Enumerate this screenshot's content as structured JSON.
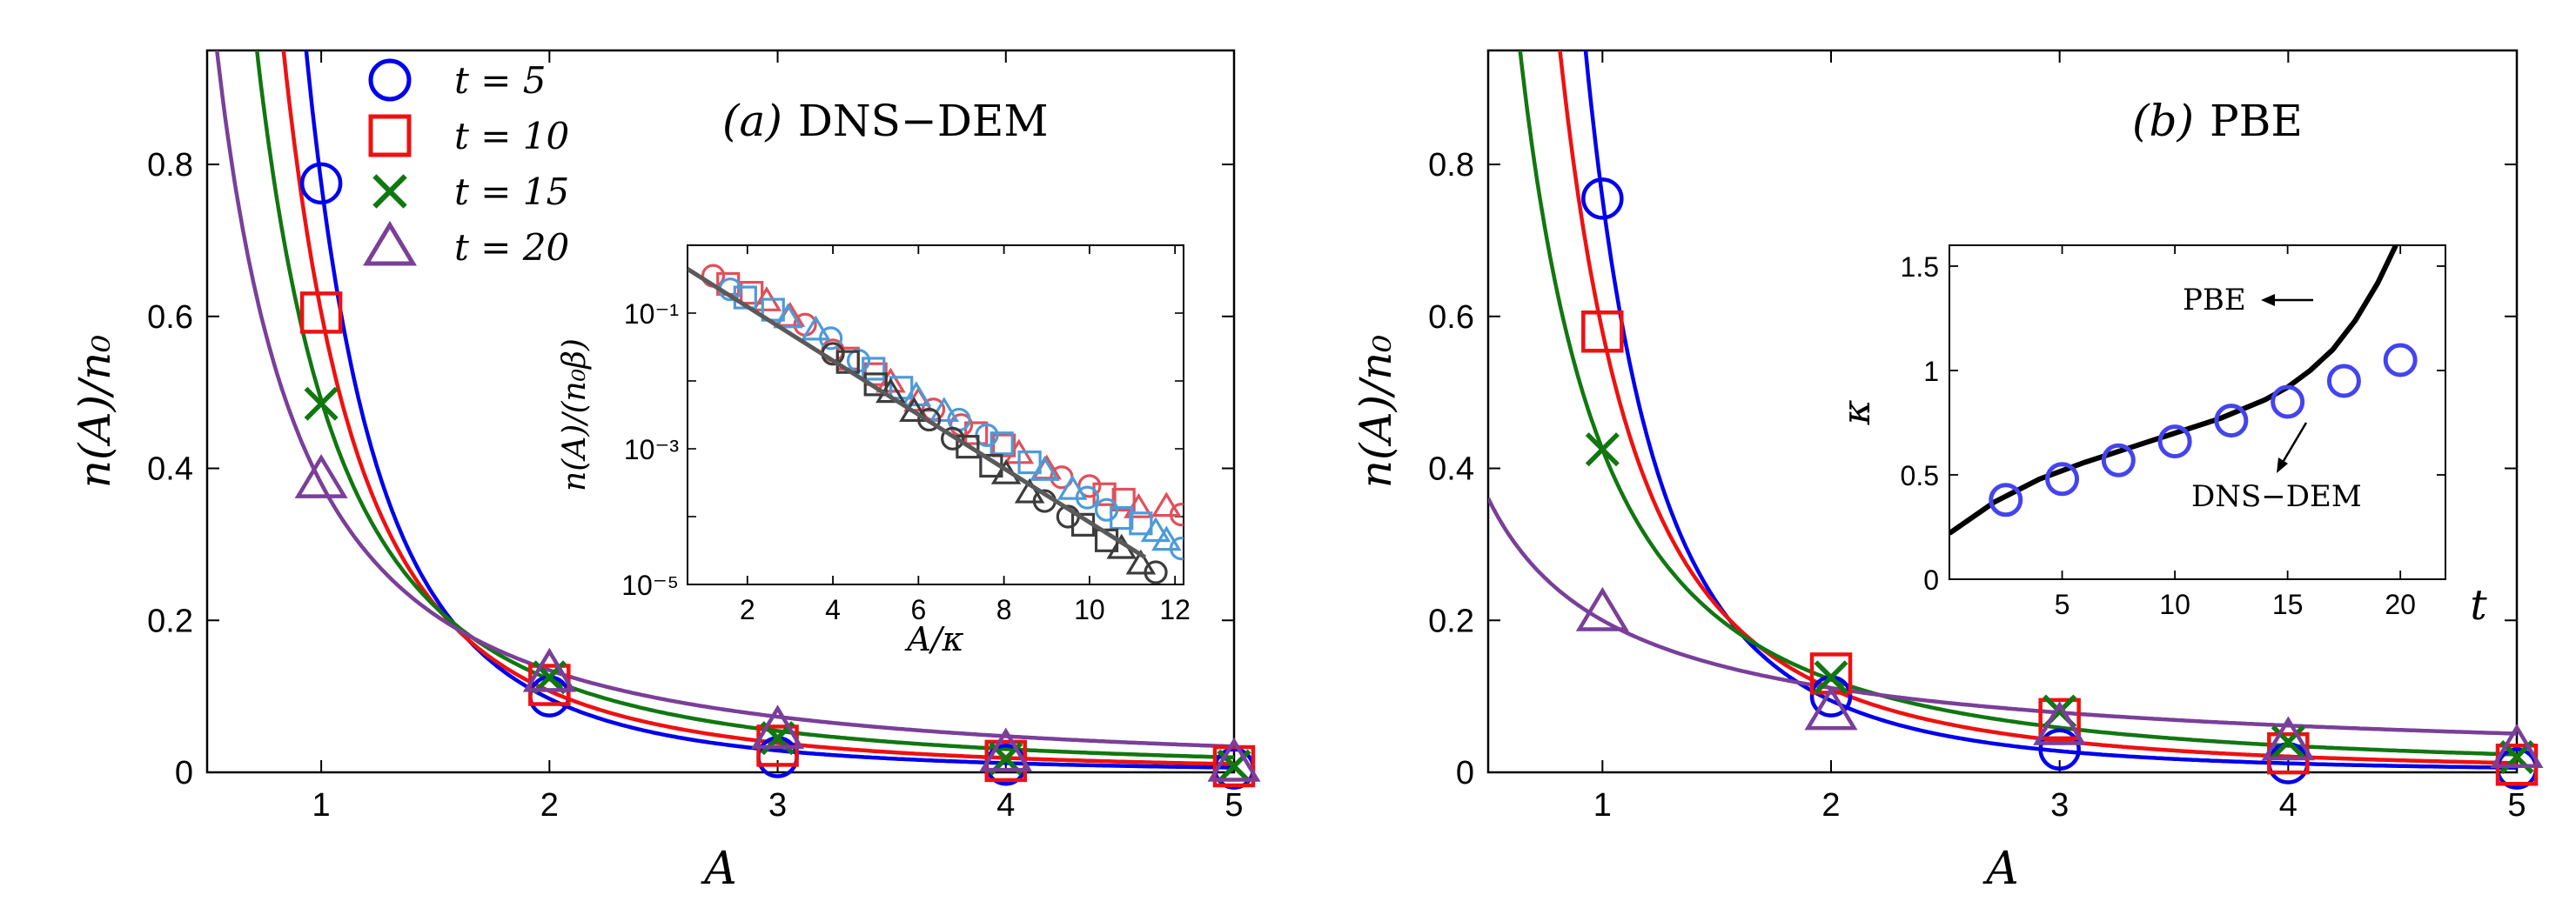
{
  "panels": [
    {
      "id": "a",
      "title_label": "(a)",
      "title_text": "DNS−DEM",
      "xlabel": "A",
      "ylabel": "n(A)/n₀",
      "xlim": [
        0.5,
        5.0
      ],
      "ylim": [
        0.0,
        0.95
      ],
      "xticks": [
        1,
        2,
        3,
        4,
        5
      ],
      "yticks": [
        0,
        0.2,
        0.4,
        0.6,
        0.8
      ],
      "legend": [
        {
          "label": "t = 5",
          "marker": "circle",
          "color": "#0000ee"
        },
        {
          "label": "t = 10",
          "marker": "square",
          "color": "#ee1111"
        },
        {
          "label": "t = 15",
          "marker": "cross",
          "color": "#117711"
        },
        {
          "label": "t = 20",
          "marker": "triangle",
          "color": "#7a3f99"
        }
      ],
      "series": [
        {
          "name": "t = 5",
          "marker": "circle",
          "color": "#0000ee",
          "x": [
            1,
            2,
            3,
            4,
            5
          ],
          "y": [
            0.775,
            0.1,
            0.02,
            0.01,
            0.005
          ],
          "curve": {
            "type": "power",
            "c": 0.775,
            "p": 3.0
          }
        },
        {
          "name": "t = 10",
          "marker": "square",
          "color": "#ee1111",
          "x": [
            1,
            2,
            3,
            4,
            5
          ],
          "y": [
            0.605,
            0.115,
            0.035,
            0.015,
            0.008
          ],
          "curve": {
            "type": "power",
            "c": 0.605,
            "p": 2.5
          }
        },
        {
          "name": "t = 15",
          "marker": "cross",
          "color": "#117711",
          "x": [
            1,
            2,
            3,
            4,
            5
          ],
          "y": [
            0.485,
            0.125,
            0.045,
            0.018,
            0.008
          ],
          "curve": {
            "type": "power",
            "c": 0.49,
            "p": 2.0
          }
        },
        {
          "name": "t = 20",
          "marker": "triangle",
          "color": "#7a3f99",
          "x": [
            1,
            2,
            3,
            4,
            5
          ],
          "y": [
            0.385,
            0.13,
            0.055,
            0.025,
            0.012
          ],
          "curve": {
            "type": "power",
            "c": 0.38,
            "p": 1.5
          }
        }
      ],
      "inset": {
        "xlabel": "A/κ",
        "ylabel": "n(A)/(n₀β)",
        "xlim": [
          0.6,
          12.2
        ],
        "ylim_log10": [
          -5,
          0
        ],
        "xticks": [
          2,
          4,
          6,
          8,
          10,
          12
        ],
        "yticks": [
          {
            "exp": -1,
            "label": "10⁻¹"
          },
          {
            "exp": -3,
            "label": "10⁻³"
          },
          {
            "exp": -5,
            "label": "10⁻⁵"
          }
        ],
        "fit_line": {
          "color": "#5a5a5a",
          "x0": 0.6,
          "log0": -0.35,
          "x1": 11.3,
          "log1": -4.6
        },
        "groups": [
          {
            "name": "red",
            "color": "#e0505a",
            "x": [
              1.2,
              2.1,
              3.0,
              4.0,
              5.0,
              6.0,
              7.0,
              8.0,
              9.0,
              10.0,
              10.8,
              11.8
            ],
            "log": [
              -0.45,
              -0.7,
              -1.05,
              -1.55,
              -1.9,
              -2.3,
              -2.65,
              -2.95,
              -3.3,
              -3.55,
              -3.75,
              -3.85
            ]
          },
          {
            "name": "blue",
            "color": "#4d9bd8",
            "x": [
              1.6,
              2.6,
              3.6,
              4.6,
              5.6,
              6.6,
              7.6,
              8.6,
              9.6,
              10.4,
              11.2,
              11.8
            ],
            "log": [
              -0.65,
              -0.95,
              -1.25,
              -1.7,
              -2.1,
              -2.45,
              -2.8,
              -3.2,
              -3.6,
              -3.9,
              -4.1,
              -4.35
            ]
          },
          {
            "name": "gray",
            "color": "#3c3c3c",
            "x": [
              4.0,
              5.0,
              5.9,
              6.8,
              7.7,
              8.6,
              9.5,
              10.4,
              11.2
            ],
            "log": [
              -1.6,
              -2.05,
              -2.45,
              -2.85,
              -3.25,
              -3.65,
              -4.0,
              -4.35,
              -4.7
            ]
          }
        ]
      }
    },
    {
      "id": "b",
      "title_label": "(b)",
      "title_text": "PBE",
      "xlabel": "A",
      "ylabel": "n(A)/n₀",
      "xlim": [
        0.5,
        5.0
      ],
      "ylim": [
        0.0,
        0.95
      ],
      "xticks": [
        1,
        2,
        3,
        4,
        5
      ],
      "yticks": [
        0,
        0.2,
        0.4,
        0.6,
        0.8
      ],
      "series": [
        {
          "name": "t = 5",
          "marker": "circle",
          "color": "#0000ee",
          "x": [
            1,
            2,
            3,
            4,
            5
          ],
          "y": [
            0.755,
            0.1,
            0.03,
            0.012,
            0.005
          ],
          "curve": {
            "type": "power",
            "c": 0.755,
            "p": 3.0
          }
        },
        {
          "name": "t = 10",
          "marker": "square",
          "color": "#ee1111",
          "x": [
            1,
            2,
            3,
            4,
            5
          ],
          "y": [
            0.58,
            0.13,
            0.07,
            0.025,
            0.01
          ],
          "curve": {
            "type": "power",
            "c": 0.58,
            "p": 2.4
          }
        },
        {
          "name": "t = 15",
          "marker": "cross",
          "color": "#117711",
          "x": [
            1,
            2,
            3,
            4,
            5
          ],
          "y": [
            0.425,
            0.125,
            0.08,
            0.04,
            0.02
          ],
          "curve": {
            "type": "power",
            "c": 0.425,
            "p": 1.8
          }
        },
        {
          "name": "t = 20",
          "marker": "triangle",
          "color": "#7a3f99",
          "x": [
            1,
            2,
            3,
            4,
            5
          ],
          "y": [
            0.21,
            0.08,
            0.06,
            0.04,
            0.03
          ],
          "curve": {
            "type": "power",
            "c": 0.2,
            "p": 0.85
          }
        }
      ],
      "inset": {
        "xlabel": "t",
        "ylabel": "κ",
        "xlim": [
          0,
          22
        ],
        "ylim": [
          0,
          1.6
        ],
        "xticks": [
          5,
          10,
          15,
          20
        ],
        "yticks": [
          0,
          0.5,
          1,
          1.5
        ],
        "line_label": "PBE",
        "points_label": "DNS−DEM",
        "line": {
          "color": "#000000",
          "x": [
            0,
            2,
            4,
            6,
            8,
            10,
            12,
            14,
            15,
            16,
            17,
            18,
            19,
            19.8
          ],
          "y": [
            0.22,
            0.37,
            0.48,
            0.56,
            0.63,
            0.7,
            0.77,
            0.86,
            0.92,
            1.0,
            1.1,
            1.24,
            1.42,
            1.6
          ]
        },
        "points": {
          "color": "#4444ee",
          "x": [
            2.5,
            5,
            7.5,
            10,
            12.5,
            15,
            17.5,
            20
          ],
          "y": [
            0.38,
            0.48,
            0.57,
            0.66,
            0.76,
            0.85,
            0.95,
            1.05
          ]
        }
      }
    }
  ]
}
